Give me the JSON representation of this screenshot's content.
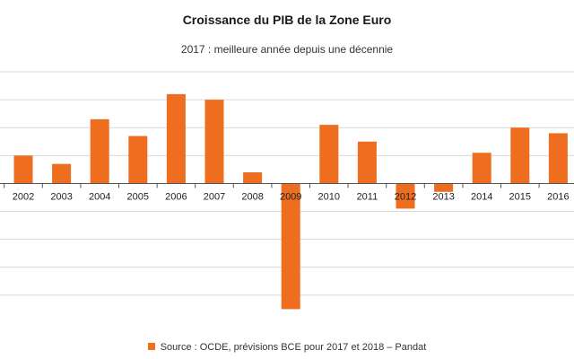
{
  "chart_data": {
    "type": "bar",
    "title": "Croissance du PIB de la Zone Euro",
    "subtitle": "2017 : meilleure année depuis une décennie",
    "categories": [
      "2002",
      "2003",
      "2004",
      "2005",
      "2006",
      "2007",
      "2008",
      "2009",
      "2010",
      "2011",
      "2012",
      "2013",
      "2014",
      "2015",
      "2016"
    ],
    "series": [
      {
        "name": "Source : OCDE, prévisions BCE pour 2017 et 2018 – Pandat",
        "values": [
          1.0,
          0.7,
          2.3,
          1.7,
          3.2,
          3.0,
          0.4,
          -4.5,
          2.1,
          1.5,
          -0.9,
          -0.3,
          1.1,
          2.0,
          1.8
        ]
      }
    ],
    "ylim": [
      -5,
      4
    ],
    "grid": true,
    "legend_position": "bottom",
    "bar_color": "#ee6d1e",
    "grid_color": "#d9d9d9",
    "axis_color": "#555555"
  }
}
